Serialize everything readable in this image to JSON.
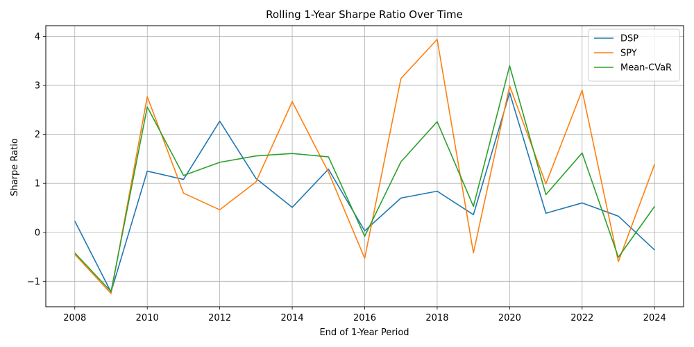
{
  "chart_data": {
    "type": "line",
    "title": "Rolling 1-Year Sharpe Ratio Over Time",
    "xlabel": "End of 1-Year Period",
    "ylabel": "Sharpe Ratio",
    "x": [
      2008,
      2009,
      2010,
      2011,
      2012,
      2013,
      2014,
      2015,
      2016,
      2017,
      2018,
      2019,
      2020,
      2021,
      2022,
      2023,
      2024
    ],
    "xlim": [
      2007.2,
      2024.8
    ],
    "ylim": [
      -1.52,
      4.22
    ],
    "xticks": [
      2008,
      2010,
      2012,
      2014,
      2016,
      2018,
      2020,
      2022,
      2024
    ],
    "yticks": [
      -1,
      0,
      1,
      2,
      3,
      4
    ],
    "ytick_labels": [
      "−1",
      "0",
      "1",
      "2",
      "3",
      "4"
    ],
    "grid": true,
    "legend_position": "top-right",
    "series": [
      {
        "name": "DSP",
        "color": "#1f77b4",
        "values": [
          0.23,
          -1.22,
          1.25,
          1.08,
          2.27,
          1.1,
          0.51,
          1.29,
          0.03,
          0.7,
          0.84,
          0.36,
          2.85,
          0.39,
          0.6,
          0.33,
          -0.36
        ]
      },
      {
        "name": "SPY",
        "color": "#ff7f0e",
        "values": [
          -0.45,
          -1.25,
          2.77,
          0.8,
          0.46,
          1.03,
          2.67,
          1.23,
          -0.53,
          3.14,
          3.94,
          -0.42,
          2.99,
          0.99,
          2.9,
          -0.6,
          1.39
        ]
      },
      {
        "name": "Mean-CVaR",
        "color": "#2ca02c",
        "values": [
          -0.42,
          -1.21,
          2.56,
          1.16,
          1.43,
          1.56,
          1.61,
          1.54,
          -0.08,
          1.44,
          2.26,
          0.53,
          3.4,
          0.77,
          1.62,
          -0.51,
          0.53
        ]
      }
    ]
  }
}
